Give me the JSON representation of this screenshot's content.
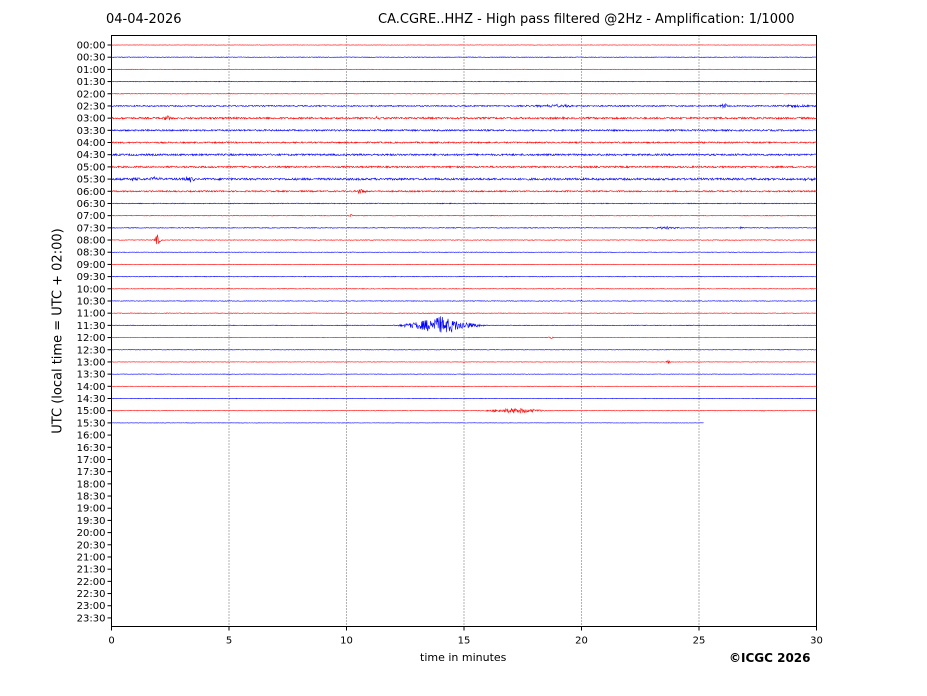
{
  "header": {
    "date": "04-04-2026",
    "title": "CA.CGRE..HHZ - High pass filtered @2Hz - Amplification: 1/1000"
  },
  "footer": {
    "copyright": "©ICGC 2026"
  },
  "chart_data": {
    "type": "line",
    "title": "CA.CGRE..HHZ - High pass filtered @2Hz - Amplification: 1/1000",
    "xlabel": "time in minutes",
    "ylabel": "UTC (local time = UTC + 02:00)",
    "xlim": [
      0,
      30
    ],
    "xticks": [
      0,
      5,
      10,
      15,
      20,
      25,
      30
    ],
    "grid_x": true,
    "grid_y": false,
    "rows": [
      "00:00",
      "00:30",
      "01:00",
      "01:30",
      "02:00",
      "02:30",
      "03:00",
      "03:30",
      "04:00",
      "04:30",
      "05:00",
      "05:30",
      "06:00",
      "06:30",
      "07:00",
      "07:30",
      "08:00",
      "08:30",
      "09:00",
      "09:30",
      "10:00",
      "10:30",
      "11:00",
      "11:30",
      "12:00",
      "12:30",
      "13:00",
      "13:30",
      "14:00",
      "14:30",
      "15:00",
      "15:30",
      "16:00",
      "16:30",
      "17:00",
      "17:30",
      "18:00",
      "18:30",
      "19:00",
      "19:30",
      "20:00",
      "20:30",
      "21:00",
      "21:30",
      "22:00",
      "22:30",
      "23:00",
      "23:30"
    ],
    "trace_colors": [
      "#ff0000",
      "#0000ff"
    ],
    "trace_rows": 32,
    "last_trace_end_minute": 25.2,
    "noise_levels": [
      0.15,
      0.3,
      0.2,
      0.3,
      0.25,
      0.6,
      0.9,
      0.8,
      0.7,
      0.9,
      0.8,
      1.0,
      0.7,
      0.4,
      0.3,
      0.35,
      0.3,
      0.25,
      0.2,
      0.3,
      0.25,
      0.3,
      0.25,
      0.3,
      0.2,
      0.25,
      0.2,
      0.2,
      0.2,
      0.25,
      0.2,
      0.15
    ],
    "events": [
      {
        "row": "02:30",
        "minute": 18.8,
        "amplitude": 1.5,
        "width": 1.8
      },
      {
        "row": "02:30",
        "minute": 26.1,
        "amplitude": 2.5,
        "width": 0.4
      },
      {
        "row": "02:30",
        "minute": 29.3,
        "amplitude": 1.5,
        "width": 1.4
      },
      {
        "row": "03:00",
        "minute": 2.4,
        "amplitude": 2.5,
        "width": 0.3
      },
      {
        "row": "03:00",
        "minute": 11.3,
        "amplitude": 2.0,
        "width": 0.3
      },
      {
        "row": "05:30",
        "minute": 1.0,
        "amplitude": 2.0,
        "width": 0.3
      },
      {
        "row": "05:30",
        "minute": 1.9,
        "amplitude": 2.5,
        "width": 0.4
      },
      {
        "row": "05:30",
        "minute": 3.3,
        "amplitude": 3.0,
        "width": 0.5
      },
      {
        "row": "05:30",
        "minute": 29.6,
        "amplitude": 2.0,
        "width": 0.4
      },
      {
        "row": "06:00",
        "minute": 10.6,
        "amplitude": 2.5,
        "width": 0.4
      },
      {
        "row": "07:00",
        "minute": 10.2,
        "amplitude": 1.5,
        "width": 0.2
      },
      {
        "row": "07:30",
        "minute": 23.6,
        "amplitude": 1.5,
        "width": 0.8
      },
      {
        "row": "07:30",
        "minute": 26.8,
        "amplitude": 1.5,
        "width": 0.2
      },
      {
        "row": "08:00",
        "minute": 1.95,
        "amplitude": 5.5,
        "width": 0.25
      },
      {
        "row": "11:30",
        "minute": 14.0,
        "amplitude": 9.0,
        "width": 2.2
      },
      {
        "row": "12:00",
        "minute": 18.7,
        "amplitude": 1.5,
        "width": 0.2
      },
      {
        "row": "13:00",
        "minute": 23.7,
        "amplitude": 3.0,
        "width": 0.15
      },
      {
        "row": "15:00",
        "minute": 17.2,
        "amplitude": 2.8,
        "width": 1.8
      },
      {
        "row": "15:00",
        "minute": 27.7,
        "amplitude": 1.0,
        "width": 0.2
      }
    ]
  }
}
